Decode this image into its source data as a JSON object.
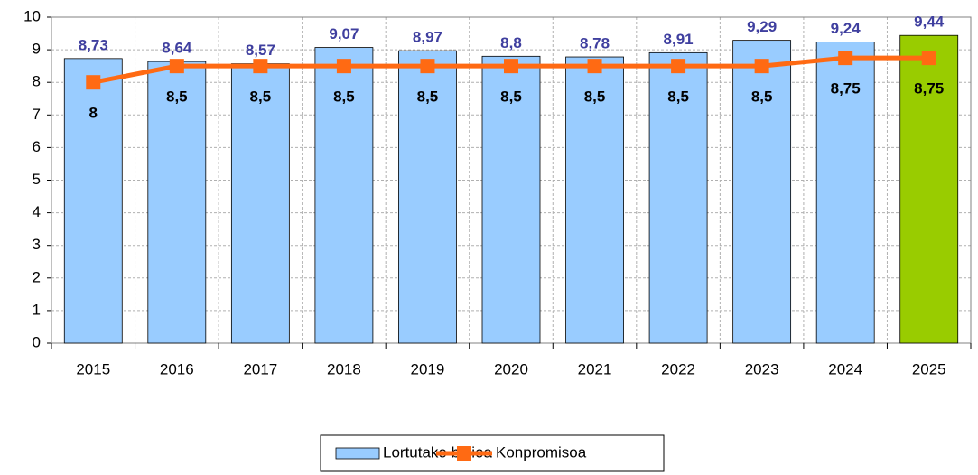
{
  "chart_data": {
    "type": "bar",
    "categories": [
      "2015",
      "2016",
      "2017",
      "2018",
      "2019",
      "2020",
      "2021",
      "2022",
      "2023",
      "2024",
      "2025"
    ],
    "series": [
      {
        "name": "Lortutako balioa",
        "type": "bar",
        "color": "#99ccff",
        "colors": [
          "#99ccff",
          "#99ccff",
          "#99ccff",
          "#99ccff",
          "#99ccff",
          "#99ccff",
          "#99ccff",
          "#99ccff",
          "#99ccff",
          "#99ccff",
          "#99cc00"
        ],
        "values": [
          8.73,
          8.64,
          8.57,
          9.07,
          8.97,
          8.8,
          8.78,
          8.91,
          9.29,
          9.24,
          9.44
        ],
        "value_labels": [
          "8,73",
          "8,64",
          "8,57",
          "9,07",
          "8,97",
          "8,8",
          "8,78",
          "8,91",
          "9,29",
          "9,24",
          "9,44"
        ]
      },
      {
        "name": "Konpromisoa",
        "type": "line",
        "color": "#ff6a13",
        "values": [
          8,
          8.5,
          8.5,
          8.5,
          8.5,
          8.5,
          8.5,
          8.5,
          8.5,
          8.75,
          8.75
        ],
        "value_labels": [
          "8",
          "8,5",
          "8,5",
          "8,5",
          "8,5",
          "8,5",
          "8,5",
          "8,5",
          "8,5",
          "8,75",
          "8,75"
        ]
      }
    ],
    "ylim": [
      0,
      10
    ],
    "yticks": [
      0,
      1,
      2,
      3,
      4,
      5,
      6,
      7,
      8,
      9,
      10
    ],
    "grid": true,
    "legend": "bottom"
  }
}
